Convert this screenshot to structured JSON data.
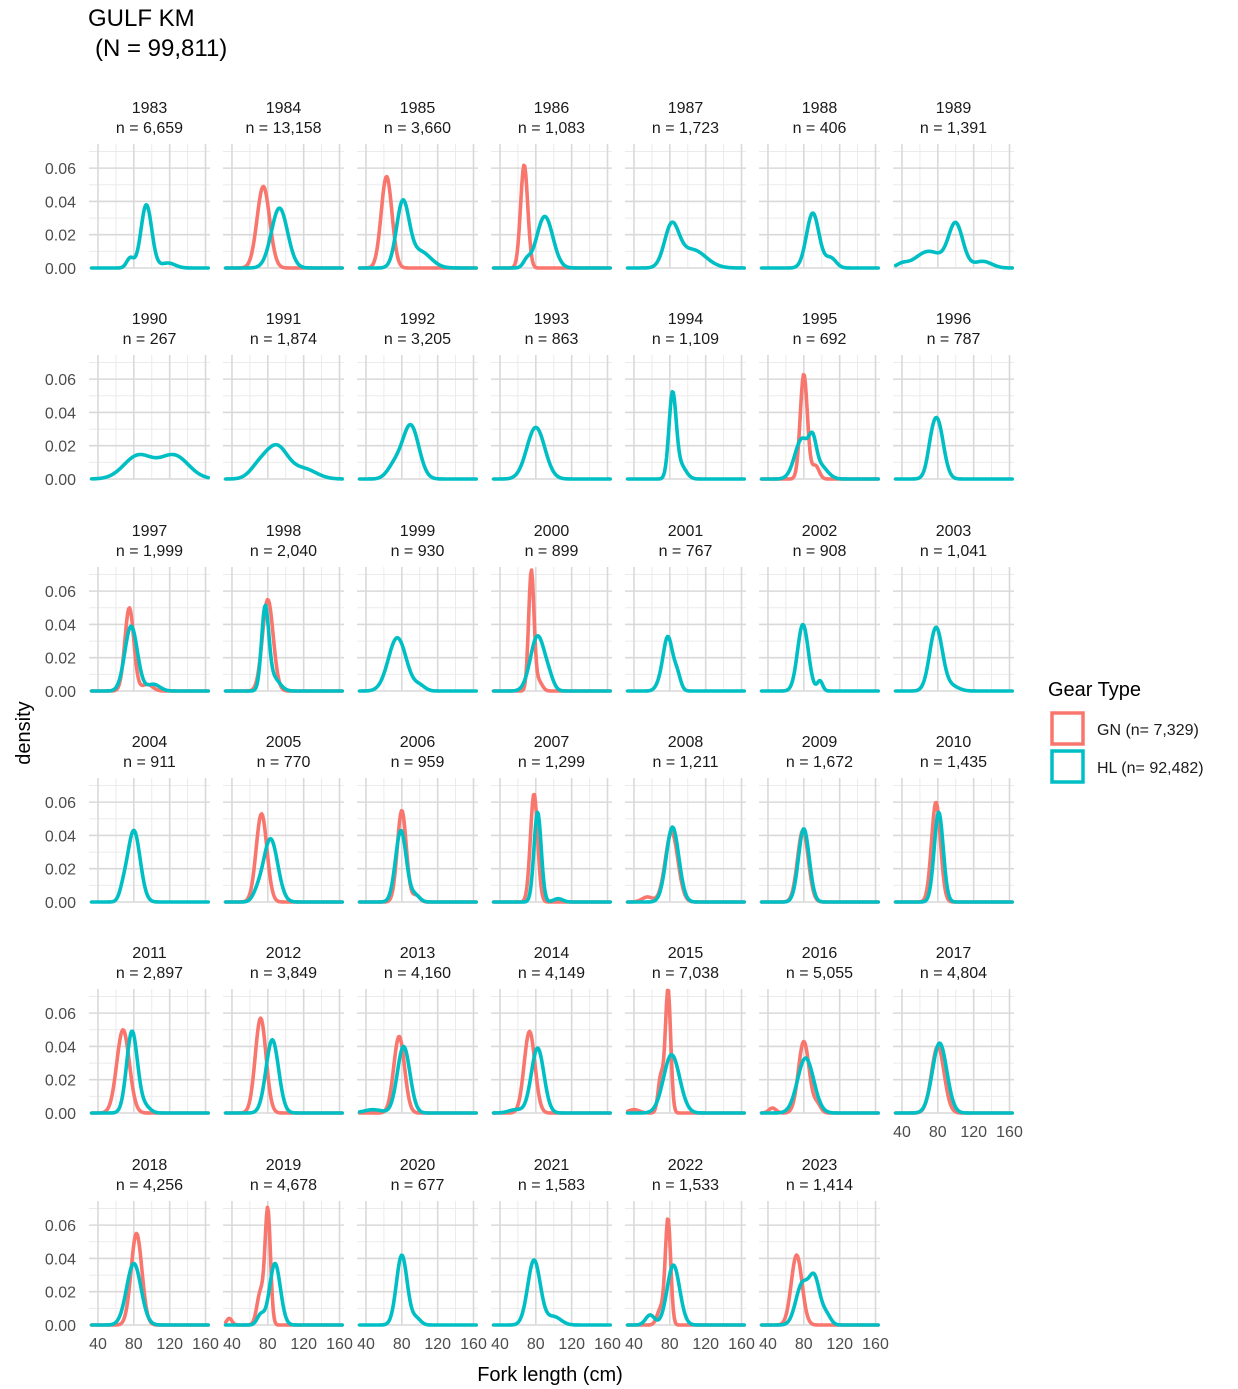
{
  "chart_data": {
    "type": "line",
    "title": "GULF KM",
    "subtitle": "(N = 99,811)",
    "xlabel": "Fork length (cm)",
    "ylabel": "density",
    "xlim": [
      30,
      165
    ],
    "ylim": [
      0,
      0.0745
    ],
    "x_ticks": [
      40,
      80,
      120,
      160
    ],
    "y_ticks": [
      0.0,
      0.02,
      0.04,
      0.06
    ],
    "y_tick_labels": [
      "0.00",
      "0.02",
      "0.04",
      "0.06"
    ],
    "x_tick_labels": [
      "40",
      "80",
      "120",
      "160"
    ],
    "legend": {
      "title": "Gear Type",
      "placement": "right",
      "entries": [
        {
          "key": "GN",
          "label": "GN (n= 7,329)",
          "color": "#F8766D"
        },
        {
          "key": "HL",
          "label": "HL (n= 92,482)",
          "color": "#00BFC4"
        }
      ]
    },
    "grid": true,
    "series_note_colors": {
      "GN": "#F8766D",
      "HL": "#00BFC4"
    },
    "panels": [
      {
        "year": "1983",
        "n": "n = 6,659",
        "GN": null,
        "HL": {
          "comps": [
            [
              94,
              6,
              0.038
            ],
            [
              76,
              4,
              0.006
            ],
            [
              118,
              8,
              0.003
            ]
          ]
        }
      },
      {
        "year": "1984",
        "n": "n = 13,158",
        "GN": {
          "comps": [
            [
              75,
              7,
              0.049
            ]
          ]
        },
        "HL": {
          "comps": [
            [
              93,
              9,
              0.036
            ]
          ]
        }
      },
      {
        "year": "1985",
        "n": "n = 3,660",
        "GN": {
          "comps": [
            [
              63,
              6,
              0.055
            ]
          ]
        },
        "HL": {
          "comps": [
            [
              81,
              7,
              0.038
            ],
            [
              100,
              12,
              0.01
            ]
          ]
        }
      },
      {
        "year": "1986",
        "n": "n = 1,083",
        "GN": {
          "comps": [
            [
              67,
              4,
              0.062
            ]
          ]
        },
        "HL": {
          "comps": [
            [
              90,
              9,
              0.031
            ],
            [
              70,
              4,
              0.004
            ]
          ]
        }
      },
      {
        "year": "1987",
        "n": "n = 1,723",
        "GN": null,
        "HL": {
          "comps": [
            [
              82,
              8,
              0.024
            ],
            [
              105,
              15,
              0.011
            ]
          ]
        }
      },
      {
        "year": "1988",
        "n": "n = 406",
        "GN": null,
        "HL": {
          "comps": [
            [
              90,
              7,
              0.033
            ],
            [
              110,
              6,
              0.006
            ]
          ]
        }
      },
      {
        "year": "1989",
        "n": "n = 1,391",
        "GN": null,
        "HL": {
          "comps": [
            [
              100,
              8,
              0.026
            ],
            [
              70,
              15,
              0.01
            ],
            [
              40,
              6,
              0.002
            ],
            [
              130,
              10,
              0.004
            ]
          ]
        }
      },
      {
        "year": "1990",
        "n": "n = 267",
        "GN": null,
        "HL": {
          "comps": [
            [
              85,
              16,
              0.014
            ],
            [
              125,
              16,
              0.014
            ]
          ]
        }
      },
      {
        "year": "1991",
        "n": "n = 1,874",
        "GN": null,
        "HL": {
          "comps": [
            [
              90,
              12,
              0.019
            ],
            [
              70,
              10,
              0.007
            ],
            [
              120,
              14,
              0.006
            ]
          ]
        }
      },
      {
        "year": "1992",
        "n": "n = 3,205",
        "GN": null,
        "HL": {
          "comps": [
            [
              90,
              9,
              0.032
            ],
            [
              72,
              8,
              0.008
            ]
          ]
        }
      },
      {
        "year": "1993",
        "n": "n = 863",
        "GN": null,
        "HL": {
          "comps": [
            [
              80,
              10,
              0.031
            ]
          ]
        }
      },
      {
        "year": "1994",
        "n": "n = 1,109",
        "GN": null,
        "HL": {
          "comps": [
            [
              83,
              4,
              0.05
            ],
            [
              92,
              6,
              0.008
            ]
          ]
        }
      },
      {
        "year": "1995",
        "n": "n = 692",
        "GN": {
          "comps": [
            [
              80,
              4,
              0.063
            ],
            [
              93,
              4,
              0.008
            ]
          ]
        },
        "HL": {
          "comps": [
            [
              78,
              8,
              0.024
            ],
            [
              90,
              4,
              0.015
            ],
            [
              98,
              8,
              0.008
            ]
          ]
        }
      },
      {
        "year": "1996",
        "n": "n = 787",
        "GN": null,
        "HL": {
          "comps": [
            [
              79,
              7,
              0.036
            ],
            [
              72,
              4,
              0.004
            ]
          ]
        }
      },
      {
        "year": "1997",
        "n": "n = 1,999",
        "GN": {
          "comps": [
            [
              75,
              5,
              0.05
            ],
            [
              95,
              6,
              0.004
            ]
          ]
        },
        "HL": {
          "comps": [
            [
              77,
              7,
              0.039
            ],
            [
              102,
              7,
              0.004
            ]
          ]
        }
      },
      {
        "year": "1998",
        "n": "n = 2,040",
        "GN": {
          "comps": [
            [
              80,
              6,
              0.055
            ]
          ]
        },
        "HL": {
          "comps": [
            [
              77,
              4,
              0.048
            ],
            [
              86,
              7,
              0.008
            ]
          ]
        }
      },
      {
        "year": "1999",
        "n": "n = 930",
        "GN": null,
        "HL": {
          "comps": [
            [
              75,
              10,
              0.032
            ],
            [
              100,
              6,
              0.003
            ]
          ]
        }
      },
      {
        "year": "2000",
        "n": "n = 899",
        "GN": {
          "comps": [
            [
              75,
              3,
              0.072
            ],
            [
              83,
              4,
              0.006
            ]
          ]
        },
        "HL": {
          "comps": [
            [
              82,
              8,
              0.033
            ],
            [
              95,
              5,
              0.005
            ]
          ]
        }
      },
      {
        "year": "2001",
        "n": "n = 767",
        "GN": null,
        "HL": {
          "comps": [
            [
              78,
              5,
              0.031
            ],
            [
              88,
              4,
              0.01
            ],
            [
              70,
              5,
              0.005
            ]
          ]
        }
      },
      {
        "year": "2002",
        "n": "n = 908",
        "GN": null,
        "HL": {
          "comps": [
            [
              79,
              6,
              0.04
            ],
            [
              98,
              3,
              0.006
            ]
          ]
        }
      },
      {
        "year": "2003",
        "n": "n = 1,041",
        "GN": null,
        "HL": {
          "comps": [
            [
              78,
              7,
              0.038
            ],
            [
              95,
              8,
              0.003
            ]
          ]
        }
      },
      {
        "year": "2004",
        "n": "n = 911",
        "GN": null,
        "HL": {
          "comps": [
            [
              80,
              7,
              0.043
            ],
            [
              68,
              4,
              0.005
            ]
          ]
        }
      },
      {
        "year": "2005",
        "n": "n = 770",
        "GN": {
          "comps": [
            [
              73,
              6,
              0.053
            ]
          ]
        },
        "HL": {
          "comps": [
            [
              83,
              8,
              0.038
            ],
            [
              68,
              5,
              0.004
            ]
          ]
        }
      },
      {
        "year": "2006",
        "n": "n = 959",
        "GN": {
          "comps": [
            [
              80,
              5,
              0.055
            ],
            [
              96,
              4,
              0.004
            ]
          ]
        },
        "HL": {
          "comps": [
            [
              79,
              6,
              0.043
            ],
            [
              95,
              5,
              0.004
            ]
          ]
        }
      },
      {
        "year": "2007",
        "n": "n = 1,299",
        "GN": {
          "comps": [
            [
              78,
              4,
              0.065
            ]
          ]
        },
        "HL": {
          "comps": [
            [
              82,
              4,
              0.054
            ],
            [
              105,
              5,
              0.002
            ]
          ]
        }
      },
      {
        "year": "2008",
        "n": "n = 1,211",
        "GN": {
          "comps": [
            [
              82,
              7,
              0.042
            ],
            [
              55,
              6,
              0.003
            ]
          ]
        },
        "HL": {
          "comps": [
            [
              83,
              7,
              0.045
            ]
          ]
        }
      },
      {
        "year": "2009",
        "n": "n = 1,672",
        "GN": {
          "comps": [
            [
              79,
              6,
              0.043
            ]
          ]
        },
        "HL": {
          "comps": [
            [
              80,
              6,
              0.044
            ]
          ]
        }
      },
      {
        "year": "2010",
        "n": "n = 1,435",
        "GN": {
          "comps": [
            [
              78,
              5,
              0.06
            ]
          ]
        },
        "HL": {
          "comps": [
            [
              81,
              5,
              0.054
            ]
          ]
        }
      },
      {
        "year": "2011",
        "n": "n = 2,897",
        "GN": {
          "comps": [
            [
              68,
              7,
              0.05
            ]
          ]
        },
        "HL": {
          "comps": [
            [
              78,
              6,
              0.049
            ],
            [
              92,
              6,
              0.004
            ]
          ]
        }
      },
      {
        "year": "2012",
        "n": "n = 3,849",
        "GN": {
          "comps": [
            [
              72,
              6,
              0.057
            ]
          ]
        },
        "HL": {
          "comps": [
            [
              85,
              7,
              0.044
            ]
          ]
        }
      },
      {
        "year": "2013",
        "n": "n = 4,160",
        "GN": {
          "comps": [
            [
              77,
              6,
              0.046
            ]
          ]
        },
        "HL": {
          "comps": [
            [
              82,
              7,
              0.04
            ],
            [
              48,
              10,
              0.002
            ]
          ]
        }
      },
      {
        "year": "2014",
        "n": "n = 4,149",
        "GN": {
          "comps": [
            [
              73,
              6,
              0.049
            ]
          ]
        },
        "HL": {
          "comps": [
            [
              82,
              7,
              0.039
            ],
            [
              58,
              8,
              0.002
            ]
          ]
        }
      },
      {
        "year": "2015",
        "n": "n = 7,038",
        "GN": {
          "comps": [
            [
              78,
              3,
              0.074
            ],
            [
              70,
              3,
              0.022
            ],
            [
              40,
              6,
              0.002
            ]
          ]
        },
        "HL": {
          "comps": [
            [
              82,
              9,
              0.035
            ]
          ]
        }
      },
      {
        "year": "2016",
        "n": "n = 5,055",
        "GN": {
          "comps": [
            [
              80,
              6,
              0.043
            ],
            [
              95,
              4,
              0.005
            ],
            [
              45,
              4,
              0.003
            ]
          ]
        },
        "HL": {
          "comps": [
            [
              82,
              9,
              0.033
            ]
          ]
        }
      },
      {
        "year": "2017",
        "n": "n = 4,804",
        "GN": {
          "comps": [
            [
              80,
              7,
              0.04
            ]
          ]
        },
        "HL": {
          "comps": [
            [
              82,
              8,
              0.042
            ]
          ]
        }
      },
      {
        "year": "2018",
        "n": "n = 4,256",
        "GN": {
          "comps": [
            [
              83,
              6,
              0.055
            ]
          ]
        },
        "HL": {
          "comps": [
            [
              80,
              8,
              0.037
            ]
          ]
        }
      },
      {
        "year": "2019",
        "n": "n = 4,678",
        "GN": {
          "comps": [
            [
              80,
              3,
              0.068
            ],
            [
              72,
              4,
              0.02
            ],
            [
              37,
              3,
              0.004
            ]
          ]
        },
        "HL": {
          "comps": [
            [
              88,
              6,
              0.037
            ],
            [
              72,
              4,
              0.006
            ]
          ]
        }
      },
      {
        "year": "2020",
        "n": "n = 677",
        "GN": null,
        "HL": {
          "comps": [
            [
              80,
              6,
              0.042
            ],
            [
              96,
              5,
              0.004
            ]
          ]
        }
      },
      {
        "year": "2021",
        "n": "n = 1,583",
        "GN": null,
        "HL": {
          "comps": [
            [
              78,
              7,
              0.039
            ],
            [
              100,
              8,
              0.005
            ]
          ]
        }
      },
      {
        "year": "2022",
        "n": "n = 1,533",
        "GN": {
          "comps": [
            [
              78,
              3,
              0.063
            ],
            [
              70,
              4,
              0.01
            ]
          ]
        },
        "HL": {
          "comps": [
            [
              84,
              7,
              0.036
            ],
            [
              58,
              5,
              0.006
            ]
          ]
        }
      },
      {
        "year": "2023",
        "n": "n = 1,414",
        "GN": {
          "comps": [
            [
              72,
              6,
              0.042
            ]
          ]
        },
        "HL": {
          "comps": [
            [
              78,
              7,
              0.024
            ],
            [
              92,
              6,
              0.027
            ],
            [
              105,
              5,
              0.006
            ]
          ]
        }
      }
    ]
  }
}
